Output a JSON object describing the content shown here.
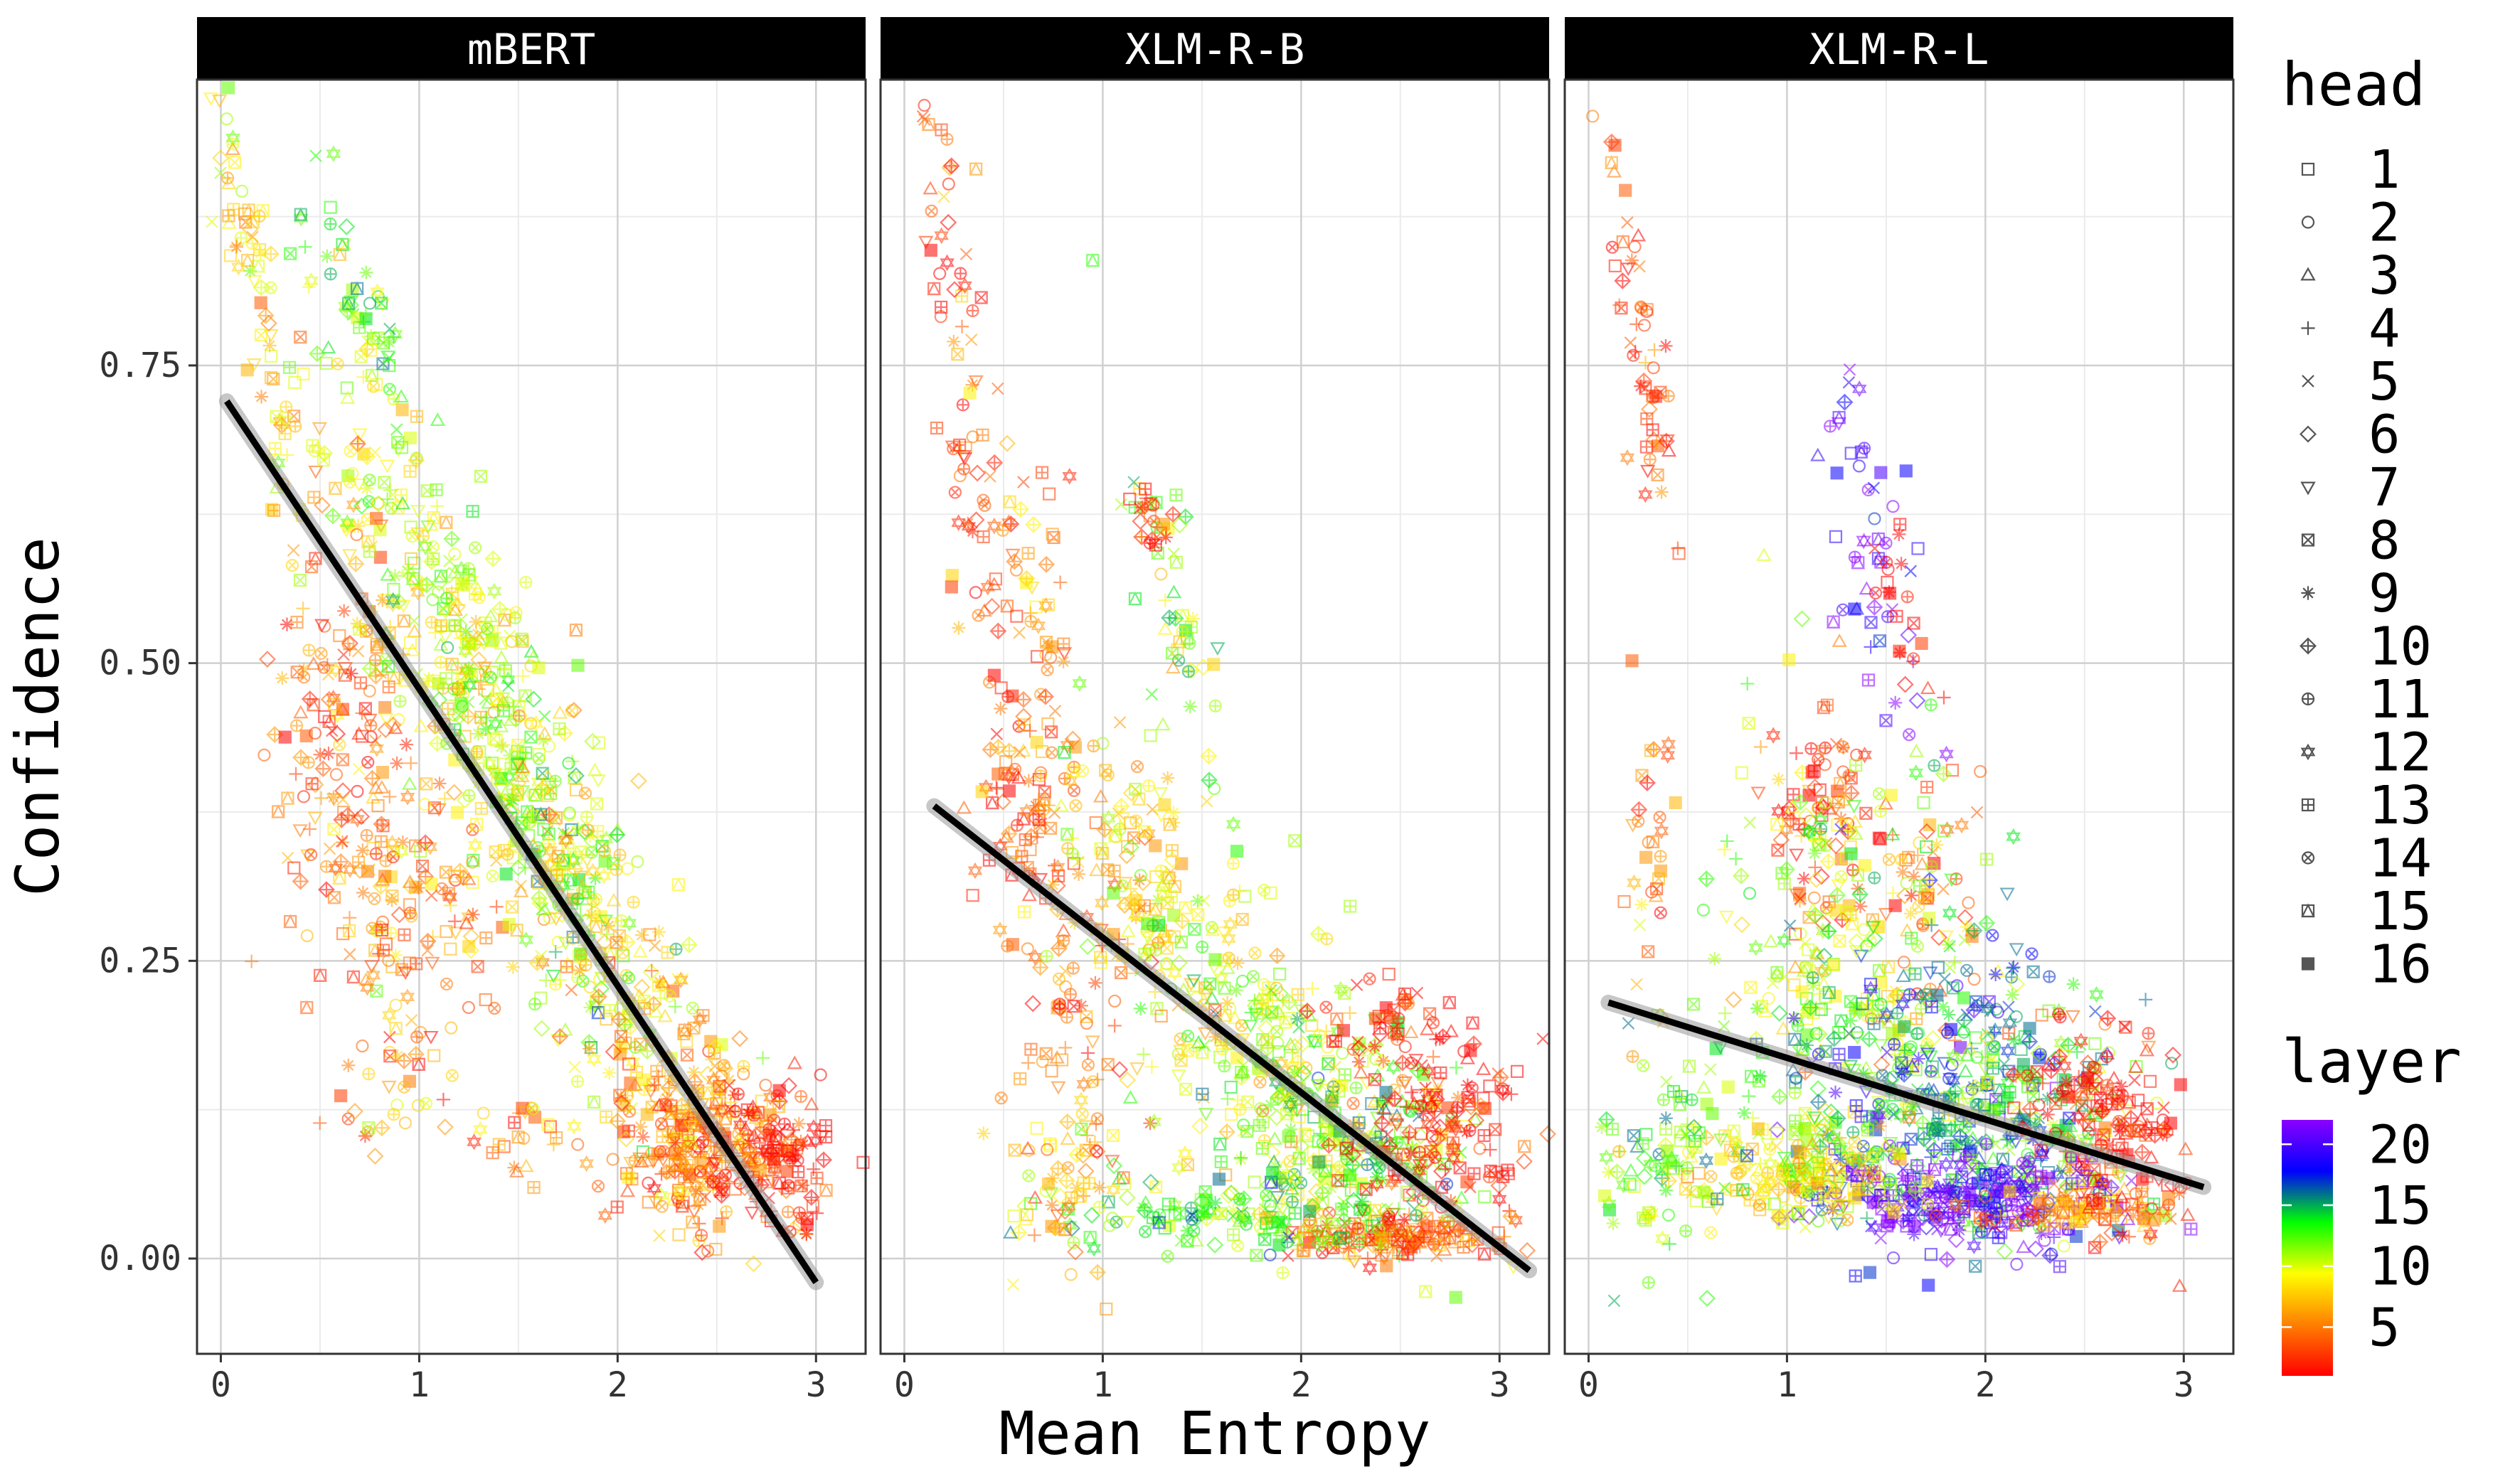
{
  "chart_data": {
    "type": "scatter",
    "xlabel": "Mean Entropy",
    "ylabel": "Confidence",
    "xlim": [
      -0.12,
      3.25
    ],
    "ylim": [
      -0.08,
      0.99
    ],
    "x_ticks": [
      "0",
      "1",
      "2",
      "3"
    ],
    "y_ticks": [
      "0.00",
      "0.25",
      "0.50",
      "0.75"
    ],
    "x_tick_values": [
      0,
      1,
      2,
      3
    ],
    "y_tick_values": [
      0,
      0.25,
      0.5,
      0.75
    ],
    "grid": true,
    "panels": [
      {
        "name": "mBERT",
        "trend": {
          "x": [
            0.03,
            3.0
          ],
          "y": [
            0.72,
            -0.02
          ]
        },
        "clusters": [
          {
            "cx": 0.12,
            "cy": 0.86,
            "sx": 0.1,
            "sy": 0.05,
            "layer": 9,
            "n": 40,
            "slope": -0.7
          },
          {
            "cx": 0.3,
            "cy": 0.7,
            "sx": 0.12,
            "sy": 0.06,
            "layer": 8,
            "n": 40,
            "slope": -0.6
          },
          {
            "cx": 0.75,
            "cy": 0.78,
            "sx": 0.14,
            "sy": 0.03,
            "layer": 12,
            "n": 60,
            "slope": -0.35
          },
          {
            "cx": 0.75,
            "cy": 0.62,
            "sx": 0.15,
            "sy": 0.06,
            "layer": 9,
            "n": 50,
            "slope": -0.3
          },
          {
            "cx": 0.6,
            "cy": 0.44,
            "sx": 0.18,
            "sy": 0.08,
            "layer": 4,
            "n": 120,
            "slope": 0
          },
          {
            "cx": 0.9,
            "cy": 0.3,
            "sx": 0.25,
            "sy": 0.08,
            "layer": 5,
            "n": 150,
            "slope": 0
          },
          {
            "cx": 1.25,
            "cy": 0.5,
            "sx": 0.3,
            "sy": 0.07,
            "layer": 10,
            "n": 260,
            "slope": -0.25
          },
          {
            "cx": 1.6,
            "cy": 0.36,
            "sx": 0.3,
            "sy": 0.07,
            "layer": 11,
            "n": 200,
            "slope": -0.25
          },
          {
            "cx": 1.9,
            "cy": 0.27,
            "sx": 0.28,
            "sy": 0.06,
            "layer": 8,
            "n": 150,
            "slope": -0.25
          },
          {
            "cx": 2.4,
            "cy": 0.13,
            "sx": 0.22,
            "sy": 0.04,
            "layer": 6,
            "n": 150,
            "slope": -0.1
          },
          {
            "cx": 2.75,
            "cy": 0.09,
            "sx": 0.15,
            "sy": 0.03,
            "layer": 2,
            "n": 140,
            "slope": -0.05
          },
          {
            "cx": 2.35,
            "cy": 0.08,
            "sx": 0.2,
            "sy": 0.03,
            "layer": 4,
            "n": 120,
            "slope": 0
          },
          {
            "cx": 0.85,
            "cy": 0.15,
            "sx": 0.12,
            "sy": 0.04,
            "layer": 7,
            "n": 25,
            "slope": 0
          },
          {
            "cx": 1.55,
            "cy": 0.1,
            "sx": 0.15,
            "sy": 0.03,
            "layer": 6,
            "n": 25,
            "slope": 0
          }
        ]
      },
      {
        "name": "XLM-R-B",
        "trend": {
          "x": [
            0.15,
            3.15
          ],
          "y": [
            0.38,
            -0.01
          ]
        },
        "clusters": [
          {
            "cx": 0.32,
            "cy": 0.7,
            "sx": 0.14,
            "sy": 0.1,
            "layer": 3,
            "n": 90,
            "slope": -1.0
          },
          {
            "cx": 0.65,
            "cy": 0.56,
            "sx": 0.1,
            "sy": 0.06,
            "layer": 5,
            "n": 50,
            "slope": -0.4
          },
          {
            "cx": 1.4,
            "cy": 0.53,
            "sx": 0.15,
            "sy": 0.05,
            "layer": 11,
            "n": 50,
            "slope": -0.5
          },
          {
            "cx": 1.25,
            "cy": 0.62,
            "sx": 0.05,
            "sy": 0.02,
            "layer": 1,
            "n": 20,
            "slope": 0
          },
          {
            "cx": 0.6,
            "cy": 0.37,
            "sx": 0.12,
            "sy": 0.06,
            "layer": 3,
            "n": 70,
            "slope": 0
          },
          {
            "cx": 0.9,
            "cy": 0.18,
            "sx": 0.15,
            "sy": 0.08,
            "layer": 5,
            "n": 90,
            "slope": 0
          },
          {
            "cx": 1.2,
            "cy": 0.32,
            "sx": 0.25,
            "sy": 0.06,
            "layer": 8,
            "n": 140,
            "slope": -0.2
          },
          {
            "cx": 1.8,
            "cy": 0.18,
            "sx": 0.3,
            "sy": 0.06,
            "layer": 10,
            "n": 240,
            "slope": -0.15
          },
          {
            "cx": 2.3,
            "cy": 0.11,
            "sx": 0.3,
            "sy": 0.04,
            "layer": 12,
            "n": 200,
            "slope": -0.05
          },
          {
            "cx": 2.7,
            "cy": 0.11,
            "sx": 0.2,
            "sy": 0.04,
            "layer": 1,
            "n": 160,
            "slope": 0
          },
          {
            "cx": 2.45,
            "cy": 0.02,
            "sx": 0.25,
            "sy": 0.01,
            "layer": 4,
            "n": 150,
            "slope": 0
          },
          {
            "cx": 1.7,
            "cy": 0.04,
            "sx": 0.4,
            "sy": 0.02,
            "layer": 13,
            "n": 150,
            "slope": 0
          },
          {
            "cx": 2.4,
            "cy": 0.2,
            "sx": 0.15,
            "sy": 0.02,
            "layer": 2,
            "n": 40,
            "slope": 0
          },
          {
            "cx": 0.75,
            "cy": 0.07,
            "sx": 0.15,
            "sy": 0.03,
            "layer": 7,
            "n": 40,
            "slope": 0
          }
        ]
      },
      {
        "name": "XLM-R-L",
        "trend": {
          "x": [
            0.1,
            3.1
          ],
          "y": [
            0.215,
            0.06
          ]
        },
        "clusters": [
          {
            "cx": 0.25,
            "cy": 0.78,
            "sx": 0.1,
            "sy": 0.05,
            "layer": 3,
            "n": 60,
            "slope": -0.8
          },
          {
            "cx": 1.4,
            "cy": 0.6,
            "sx": 0.18,
            "sy": 0.07,
            "layer": 21,
            "n": 50,
            "slope": -0.5
          },
          {
            "cx": 1.6,
            "cy": 0.53,
            "sx": 0.08,
            "sy": 0.03,
            "layer": 1,
            "n": 20,
            "slope": -0.3
          },
          {
            "cx": 0.3,
            "cy": 0.35,
            "sx": 0.06,
            "sy": 0.05,
            "layer": 5,
            "n": 30,
            "slope": 0
          },
          {
            "cx": 1.2,
            "cy": 0.38,
            "sx": 0.15,
            "sy": 0.05,
            "layer": 3,
            "n": 80,
            "slope": 0
          },
          {
            "cx": 1.7,
            "cy": 0.3,
            "sx": 0.2,
            "sy": 0.06,
            "layer": 4,
            "n": 60,
            "slope": 0
          },
          {
            "cx": 1.3,
            "cy": 0.25,
            "sx": 0.3,
            "sy": 0.09,
            "layer": 11,
            "n": 240,
            "slope": 0
          },
          {
            "cx": 1.75,
            "cy": 0.15,
            "sx": 0.35,
            "sy": 0.06,
            "layer": 16,
            "n": 260,
            "slope": 0
          },
          {
            "cx": 2.2,
            "cy": 0.12,
            "sx": 0.3,
            "sy": 0.05,
            "layer": 13,
            "n": 180,
            "slope": 0
          },
          {
            "cx": 2.6,
            "cy": 0.12,
            "sx": 0.2,
            "sy": 0.04,
            "layer": 1,
            "n": 160,
            "slope": -0.05
          },
          {
            "cx": 1.9,
            "cy": 0.05,
            "sx": 0.4,
            "sy": 0.02,
            "layer": 21,
            "n": 250,
            "slope": 0
          },
          {
            "cx": 1.1,
            "cy": 0.07,
            "sx": 0.3,
            "sy": 0.02,
            "layer": 9,
            "n": 200,
            "slope": 0
          },
          {
            "cx": 0.5,
            "cy": 0.1,
            "sx": 0.2,
            "sy": 0.05,
            "layer": 12,
            "n": 80,
            "slope": 0
          },
          {
            "cx": 2.5,
            "cy": 0.04,
            "sx": 0.25,
            "sy": 0.01,
            "layer": 5,
            "n": 100,
            "slope": 0
          },
          {
            "cx": 0.2,
            "cy": 0.07,
            "sx": 0.08,
            "sy": 0.02,
            "layer": 12,
            "n": 20,
            "slope": 0
          }
        ]
      }
    ],
    "legend_head": {
      "title": "head",
      "items": [
        {
          "label": "1",
          "shape": "square"
        },
        {
          "label": "2",
          "shape": "circle"
        },
        {
          "label": "3",
          "shape": "triangle"
        },
        {
          "label": "4",
          "shape": "plus"
        },
        {
          "label": "5",
          "shape": "x"
        },
        {
          "label": "6",
          "shape": "diamond"
        },
        {
          "label": "7",
          "shape": "triangle-down"
        },
        {
          "label": "8",
          "shape": "square-x"
        },
        {
          "label": "9",
          "shape": "asterisk"
        },
        {
          "label": "10",
          "shape": "diamond-plus"
        },
        {
          "label": "11",
          "shape": "circle-plus"
        },
        {
          "label": "12",
          "shape": "star-of-david"
        },
        {
          "label": "13",
          "shape": "square-plus"
        },
        {
          "label": "14",
          "shape": "circle-x"
        },
        {
          "label": "15",
          "shape": "square-triangle"
        },
        {
          "label": "16",
          "shape": "filled-square"
        }
      ]
    },
    "legend_layer": {
      "title": "layer",
      "min": 1,
      "max": 22,
      "tick_labels": [
        "20",
        "15",
        "10",
        "5"
      ],
      "tick_values": [
        20,
        15,
        10,
        5
      ],
      "colors": [
        "#ff0000",
        "#ff7f00",
        "#ffff00",
        "#00ff00",
        "#0000ff",
        "#8b00ff"
      ]
    },
    "colors": {
      "strip_bg": "#000000",
      "strip_text": "#ffffff",
      "panel_border": "#333333",
      "grid_major": "#d0d0d0",
      "grid_minor": "#ebebeb",
      "trend_line": "#000000",
      "trend_band": "#999999"
    }
  }
}
